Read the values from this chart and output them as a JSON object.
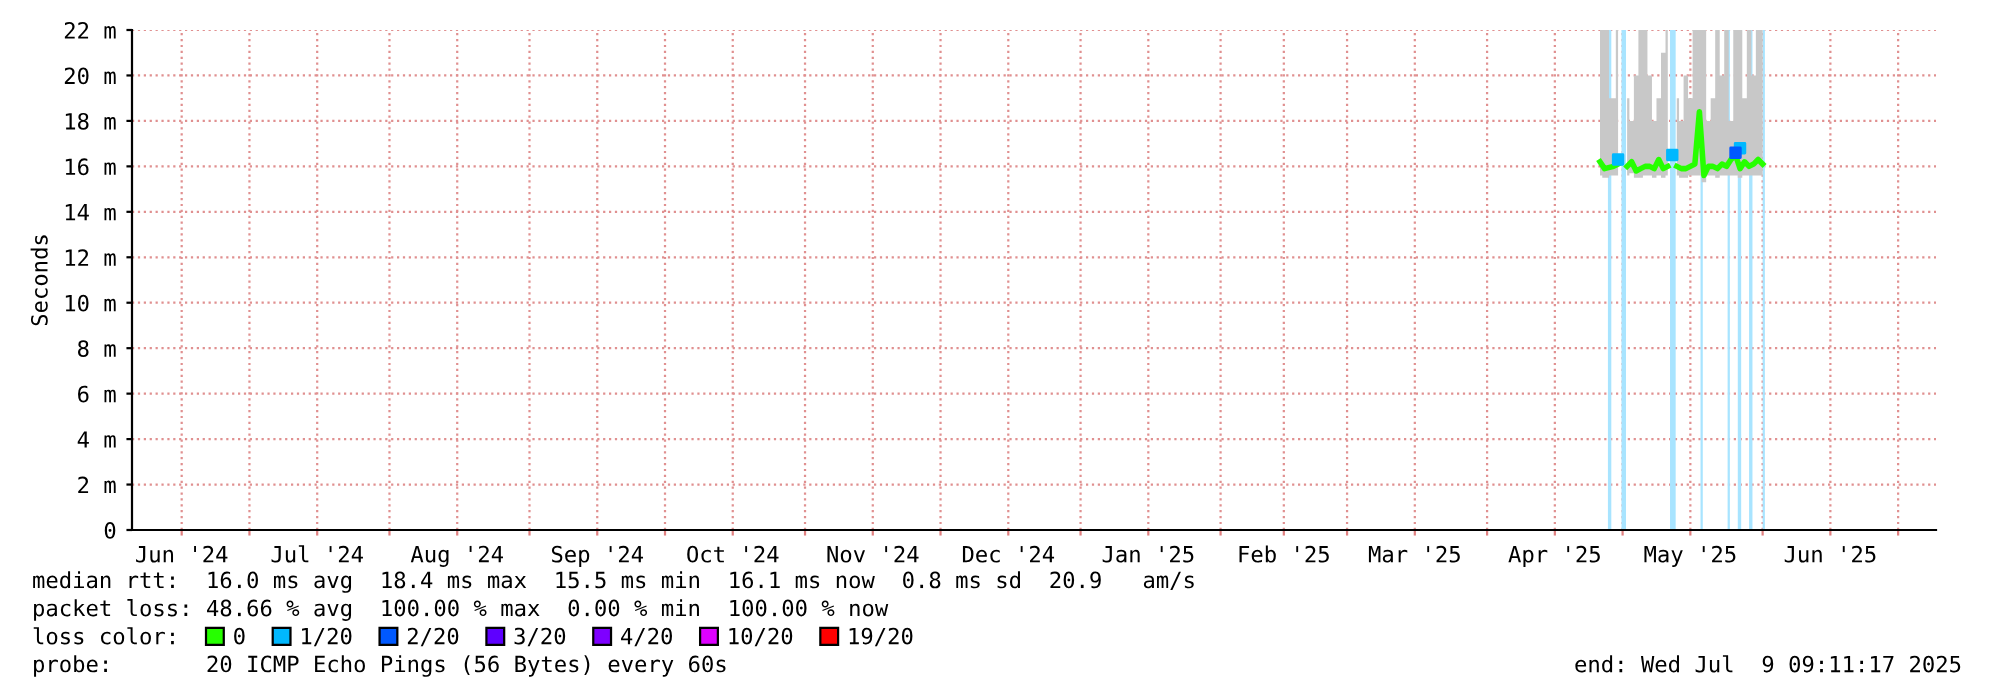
{
  "chart_data": {
    "type": "line",
    "ylabel": "Seconds",
    "xlim": [
      "2024-06-05",
      "2025-07-09T09:11"
    ],
    "ylim": [
      0,
      22
    ],
    "yticks": [
      0,
      {
        "value": 2,
        "label": "2 m"
      },
      {
        "value": 4,
        "label": "4 m"
      },
      {
        "value": 6,
        "label": "6 m"
      },
      {
        "value": 8,
        "label": "8 m"
      },
      {
        "value": 10,
        "label": "10 m"
      },
      {
        "value": 12,
        "label": "12 m"
      },
      {
        "value": 14,
        "label": "14 m"
      },
      {
        "value": 16,
        "label": "16 m"
      },
      {
        "value": 18,
        "label": "18 m"
      },
      {
        "value": 20,
        "label": "20 m"
      },
      {
        "value": 22,
        "label": "22 m"
      }
    ],
    "xticks": [
      {
        "value": "2024-06-16",
        "label": "Jun '24"
      },
      {
        "value": "2024-07-01",
        "label": null
      },
      {
        "value": "2024-07-16",
        "label": "Jul '24"
      },
      {
        "value": "2024-08-01",
        "label": null
      },
      {
        "value": "2024-08-16",
        "label": "Aug '24"
      },
      {
        "value": "2024-09-01",
        "label": null
      },
      {
        "value": "2024-09-16",
        "label": "Sep '24"
      },
      {
        "value": "2024-10-01",
        "label": null
      },
      {
        "value": "2024-10-16",
        "label": "Oct '24"
      },
      {
        "value": "2024-11-01",
        "label": null
      },
      {
        "value": "2024-11-16",
        "label": "Nov '24"
      },
      {
        "value": "2024-12-01",
        "label": null
      },
      {
        "value": "2024-12-16",
        "label": "Dec '24"
      },
      {
        "value": "2025-01-01",
        "label": null
      },
      {
        "value": "2025-01-16",
        "label": "Jan '25"
      },
      {
        "value": "2025-02-01",
        "label": null
      },
      {
        "value": "2025-02-15",
        "label": "Feb '25"
      },
      {
        "value": "2025-03-01",
        "label": null
      },
      {
        "value": "2025-03-16",
        "label": "Mar '25"
      },
      {
        "value": "2025-04-01",
        "label": null
      },
      {
        "value": "2025-04-16",
        "label": "Apr '25"
      },
      {
        "value": "2025-05-01",
        "label": null
      },
      {
        "value": "2025-05-16",
        "label": "May '25"
      },
      {
        "value": "2025-06-01",
        "label": null
      },
      {
        "value": "2025-06-16",
        "label": "Jun '25"
      },
      {
        "value": "2025-07-01",
        "label": null
      }
    ],
    "grid": true,
    "legend": "bottom",
    "marker": "none",
    "bands": [
      {
        "axis": "x",
        "from": "2025-04-27T18:00",
        "to": "2025-04-28T12:00",
        "color": "#a8e4ff"
      },
      {
        "axis": "x",
        "from": "2025-04-30T18:00",
        "to": "2025-05-01T18:00",
        "color": "#a8e4ff"
      },
      {
        "axis": "x",
        "from": "2025-05-11T12:00",
        "to": "2025-05-12T18:00",
        "color": "#a8e4ff"
      },
      {
        "axis": "x",
        "from": "2025-05-18T06:00",
        "to": "2025-05-18T18:00",
        "color": "#a8e4ff"
      },
      {
        "axis": "x",
        "from": "2025-05-24T06:00",
        "to": "2025-05-24T18:00",
        "color": "#a8e4ff"
      },
      {
        "axis": "x",
        "from": "2025-05-26T12:00",
        "to": "2025-05-27T06:00",
        "color": "#a8e4ff"
      },
      {
        "axis": "x",
        "from": "2025-05-29T00:00",
        "to": "2025-05-29T18:00",
        "color": "#a8e4ff"
      },
      {
        "axis": "x",
        "from": "2025-06-01T00:00",
        "to": "2025-06-01T12:00",
        "color": "#a8e4ff"
      }
    ],
    "series": [
      {
        "name": "0",
        "color": "#26ff00",
        "x": [
          "2025-04-26",
          "2025-04-27",
          "2025-04-29",
          "2025-04-30",
          "2025-05-01",
          "2025-05-02",
          "2025-05-03",
          "2025-05-04",
          "2025-05-05",
          "2025-05-06",
          "2025-05-07",
          "2025-05-08",
          "2025-05-09",
          "2025-05-10",
          "2025-05-11",
          "2025-05-12",
          "2025-05-13",
          "2025-05-14",
          "2025-05-15",
          "2025-05-16",
          "2025-05-17",
          "2025-05-18",
          "2025-05-19",
          "2025-05-20",
          "2025-05-21",
          "2025-05-22",
          "2025-05-23",
          "2025-05-24",
          "2025-05-25",
          "2025-05-26",
          "2025-05-27",
          "2025-05-28",
          "2025-05-29",
          "2025-05-30",
          "2025-05-31",
          "2025-06-01"
        ],
        "values": [
          16.2,
          15.9,
          16.0,
          16.1,
          null,
          16.0,
          16.2,
          15.8,
          15.9,
          16.0,
          16.0,
          15.9,
          16.3,
          15.9,
          16.0,
          null,
          16.0,
          15.9,
          15.9,
          16.0,
          16.1,
          18.4,
          15.6,
          16.0,
          16.0,
          15.9,
          16.1,
          16.0,
          16.3,
          16.5,
          15.9,
          16.2,
          16.0,
          16.1,
          16.3,
          16.1
        ],
        "lower": [
          15.6,
          15.5,
          15.6,
          15.6,
          null,
          15.6,
          15.7,
          15.5,
          15.5,
          15.6,
          15.6,
          15.5,
          15.6,
          15.5,
          15.6,
          null,
          15.6,
          15.5,
          15.5,
          15.6,
          15.6,
          15.6,
          15.3,
          15.6,
          15.6,
          15.5,
          15.6,
          15.6,
          15.6,
          15.6,
          15.5,
          15.6,
          15.6,
          15.6,
          15.6,
          15.6
        ],
        "upper": [
          22,
          22,
          19,
          22,
          null,
          19,
          18,
          20,
          22,
          22,
          20,
          18,
          19,
          21,
          22,
          null,
          19,
          18,
          20,
          19,
          22,
          22,
          22,
          18,
          19,
          22,
          20,
          22,
          18,
          22,
          22,
          19,
          22,
          20,
          22,
          22
        ]
      },
      {
        "name": "1/20",
        "color": "#00b8ff",
        "type": "scatter",
        "marker": "square",
        "x": [
          "2025-04-30",
          "2025-05-12",
          "2025-05-27"
        ],
        "values": [
          16.3,
          16.5,
          16.8
        ]
      },
      {
        "name": "2/20",
        "color": "#0059ff",
        "type": "scatter",
        "marker": "square",
        "x": [
          "2025-05-26"
        ],
        "values": [
          16.6
        ]
      },
      {
        "name": "3/20",
        "color": "#5e00ff",
        "type": "scatter"
      },
      {
        "name": "4/20",
        "color": "#7e00ff",
        "type": "scatter"
      },
      {
        "name": "10/20",
        "color": "#dd00ff",
        "type": "scatter"
      },
      {
        "name": "19/20",
        "color": "#ff0000",
        "type": "scatter"
      }
    ],
    "annotations": [
      "median rtt:  16.0 ms avg  18.4 ms max  15.5 ms min  16.1 ms now  0.8 ms sd  20.9   am/s",
      "packet loss: 48.66 % avg  100.00 % max  0.00 % min  100.00 % now",
      "loss color:",
      "probe:       20 ICMP Echo Pings (56 Bytes) every 60s",
      "end: Wed Jul  9 09:11:17 2025"
    ]
  }
}
